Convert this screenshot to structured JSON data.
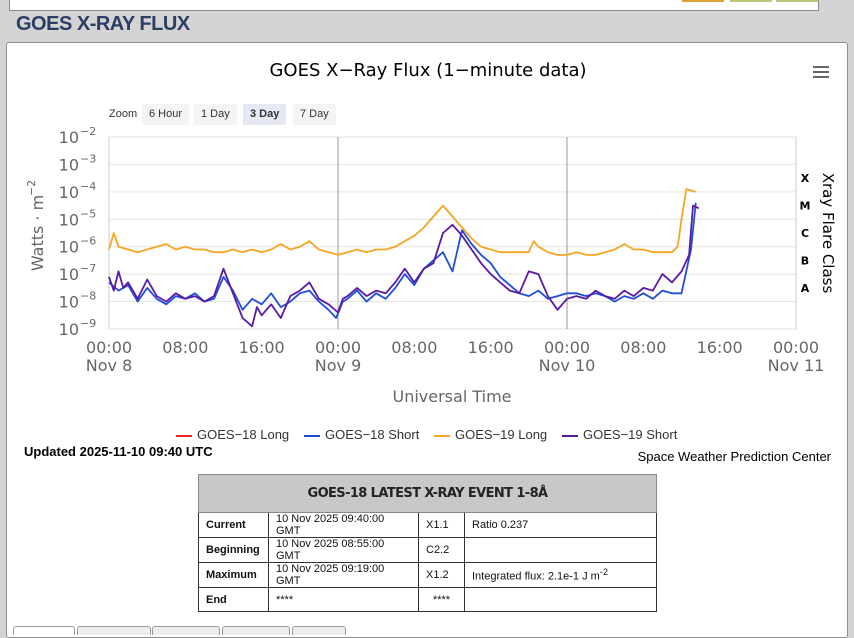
{
  "header": {
    "title": "GOES X-RAY FLUX"
  },
  "chart_data": {
    "type": "line",
    "title": "GOES X−Ray Flux (1−minute data)",
    "xlabel": "Universal Time",
    "ylabel": "Watts · m",
    "ylabel_sup": "−2",
    "y2label": "Xray Flare Class",
    "y_scale": "log",
    "x_domain_hours": [
      0,
      72
    ],
    "y_exponents": [
      -9,
      -2
    ],
    "y_ticks": [
      {
        "exp": -2,
        "label": "10",
        "sup": "−2"
      },
      {
        "exp": -3,
        "label": "10",
        "sup": "−3"
      },
      {
        "exp": -4,
        "label": "10",
        "sup": "−4"
      },
      {
        "exp": -5,
        "label": "10",
        "sup": "−5"
      },
      {
        "exp": -6,
        "label": "10",
        "sup": "−6"
      },
      {
        "exp": -7,
        "label": "10",
        "sup": "−7"
      },
      {
        "exp": -8,
        "label": "10",
        "sup": "−8"
      },
      {
        "exp": -9,
        "label": "10",
        "sup": "−9"
      }
    ],
    "flare_classes": [
      {
        "label": "X",
        "exp": -3.5
      },
      {
        "label": "M",
        "exp": -4.5
      },
      {
        "label": "C",
        "exp": -5.5
      },
      {
        "label": "B",
        "exp": -6.5
      },
      {
        "label": "A",
        "exp": -7.5
      }
    ],
    "x_ticks": [
      {
        "hour": 0,
        "time": "00:00",
        "date": "Nov 8"
      },
      {
        "hour": 8,
        "time": "08:00",
        "date": ""
      },
      {
        "hour": 16,
        "time": "16:00",
        "date": ""
      },
      {
        "hour": 24,
        "time": "00:00",
        "date": "Nov 9"
      },
      {
        "hour": 32,
        "time": "08:00",
        "date": ""
      },
      {
        "hour": 40,
        "time": "16:00",
        "date": ""
      },
      {
        "hour": 48,
        "time": "00:00",
        "date": "Nov 10"
      },
      {
        "hour": 56,
        "time": "08:00",
        "date": ""
      },
      {
        "hour": 64,
        "time": "16:00",
        "date": ""
      },
      {
        "hour": 72,
        "time": "00:00",
        "date": "Nov 11"
      }
    ],
    "series": [
      {
        "name": "GOES−18 Long",
        "color": "#e8212b",
        "points": []
      },
      {
        "name": "GOES−18 Short",
        "color": "#1f4fd6",
        "points": [
          [
            0,
            -7.3
          ],
          [
            1,
            -7.6
          ],
          [
            2,
            -7.4
          ],
          [
            3,
            -8.0
          ],
          [
            4,
            -7.5
          ],
          [
            5,
            -7.9
          ],
          [
            6,
            -8.1
          ],
          [
            7,
            -7.8
          ],
          [
            8,
            -7.9
          ],
          [
            9,
            -7.7
          ],
          [
            10,
            -8.0
          ],
          [
            11,
            -7.9
          ],
          [
            12,
            -7.1
          ],
          [
            13,
            -7.6
          ],
          [
            14,
            -8.3
          ],
          [
            15,
            -7.9
          ],
          [
            16,
            -8.1
          ],
          [
            17,
            -7.7
          ],
          [
            18,
            -8.2
          ],
          [
            19,
            -8.0
          ],
          [
            20,
            -7.7
          ],
          [
            21,
            -7.6
          ],
          [
            22,
            -8.0
          ],
          [
            23,
            -8.3
          ],
          [
            23.8,
            -8.6
          ],
          [
            24.5,
            -8.0
          ],
          [
            25,
            -7.9
          ],
          [
            26,
            -7.6
          ],
          [
            27,
            -8.0
          ],
          [
            28,
            -7.7
          ],
          [
            29,
            -7.9
          ],
          [
            30,
            -7.5
          ],
          [
            31,
            -7.0
          ],
          [
            32,
            -7.4
          ],
          [
            33,
            -6.8
          ],
          [
            34,
            -6.5
          ],
          [
            35,
            -6.2
          ],
          [
            36,
            -6.9
          ],
          [
            37,
            -5.4
          ],
          [
            38,
            -5.9
          ],
          [
            39,
            -6.3
          ],
          [
            40,
            -6.6
          ],
          [
            41,
            -7.1
          ],
          [
            42,
            -7.4
          ],
          [
            43,
            -7.7
          ],
          [
            44,
            -7.8
          ],
          [
            45,
            -7.6
          ],
          [
            46,
            -7.9
          ],
          [
            47,
            -7.8
          ],
          [
            48,
            -7.7
          ],
          [
            49,
            -7.7
          ],
          [
            50,
            -7.8
          ],
          [
            51,
            -7.7
          ],
          [
            52,
            -7.8
          ],
          [
            53,
            -8.0
          ],
          [
            54,
            -7.8
          ],
          [
            55,
            -7.9
          ],
          [
            56,
            -7.7
          ],
          [
            57,
            -7.9
          ],
          [
            58,
            -7.6
          ],
          [
            59,
            -7.7
          ],
          [
            60,
            -7.7
          ],
          [
            61,
            -6.1
          ],
          [
            61.5,
            -4.4
          ]
        ]
      },
      {
        "name": "GOES−19 Long",
        "color": "#f5a623",
        "points": [
          [
            0,
            -6.1
          ],
          [
            0.5,
            -5.5
          ],
          [
            1,
            -6.0
          ],
          [
            2,
            -6.1
          ],
          [
            3,
            -6.2
          ],
          [
            4,
            -6.1
          ],
          [
            5,
            -6.0
          ],
          [
            6,
            -5.9
          ],
          [
            7,
            -6.1
          ],
          [
            8,
            -6.0
          ],
          [
            9,
            -6.1
          ],
          [
            10,
            -6.1
          ],
          [
            11,
            -6.2
          ],
          [
            12,
            -6.2
          ],
          [
            13,
            -6.1
          ],
          [
            14,
            -6.2
          ],
          [
            15,
            -6.1
          ],
          [
            16,
            -6.2
          ],
          [
            17,
            -6.1
          ],
          [
            18,
            -5.9
          ],
          [
            19,
            -6.1
          ],
          [
            20,
            -6.0
          ],
          [
            21,
            -5.8
          ],
          [
            22,
            -6.1
          ],
          [
            23,
            -6.2
          ],
          [
            24,
            -6.3
          ],
          [
            25,
            -6.2
          ],
          [
            26,
            -6.1
          ],
          [
            27,
            -6.2
          ],
          [
            28,
            -6.1
          ],
          [
            29,
            -6.1
          ],
          [
            30,
            -6.0
          ],
          [
            31,
            -5.8
          ],
          [
            32,
            -5.6
          ],
          [
            33,
            -5.3
          ],
          [
            34,
            -4.9
          ],
          [
            35,
            -4.5
          ],
          [
            36,
            -4.9
          ],
          [
            37,
            -5.3
          ],
          [
            38,
            -5.7
          ],
          [
            39,
            -6.0
          ],
          [
            40,
            -6.1
          ],
          [
            41,
            -6.2
          ],
          [
            42,
            -6.2
          ],
          [
            43,
            -6.2
          ],
          [
            44,
            -6.2
          ],
          [
            44.5,
            -5.8
          ],
          [
            45,
            -6.0
          ],
          [
            46,
            -6.2
          ],
          [
            47,
            -6.3
          ],
          [
            48,
            -6.3
          ],
          [
            49,
            -6.2
          ],
          [
            50,
            -6.3
          ],
          [
            51,
            -6.3
          ],
          [
            52,
            -6.2
          ],
          [
            53,
            -6.1
          ],
          [
            54,
            -5.9
          ],
          [
            55,
            -6.1
          ],
          [
            56,
            -6.1
          ],
          [
            57,
            -6.2
          ],
          [
            58,
            -6.2
          ],
          [
            59,
            -6.2
          ],
          [
            59.6,
            -6.0
          ],
          [
            60,
            -5.0
          ],
          [
            60.5,
            -3.9
          ],
          [
            61.5,
            -4.0
          ]
        ]
      },
      {
        "name": "GOES−19 Short",
        "color": "#5a1aa3",
        "points": [
          [
            0,
            -7.1
          ],
          [
            0.5,
            -7.6
          ],
          [
            1,
            -6.9
          ],
          [
            1.5,
            -7.5
          ],
          [
            2,
            -7.3
          ],
          [
            3,
            -7.9
          ],
          [
            4,
            -7.2
          ],
          [
            5,
            -7.8
          ],
          [
            6,
            -8.0
          ],
          [
            7,
            -7.7
          ],
          [
            8,
            -7.9
          ],
          [
            9,
            -7.8
          ],
          [
            10,
            -8.0
          ],
          [
            11,
            -7.8
          ],
          [
            12,
            -6.8
          ],
          [
            13,
            -7.7
          ],
          [
            14,
            -8.6
          ],
          [
            15,
            -8.9
          ],
          [
            15.5,
            -8.2
          ],
          [
            16,
            -8.5
          ],
          [
            17,
            -8.1
          ],
          [
            18,
            -8.6
          ],
          [
            19,
            -7.8
          ],
          [
            20,
            -7.6
          ],
          [
            21,
            -7.3
          ],
          [
            22,
            -7.9
          ],
          [
            23,
            -8.1
          ],
          [
            24,
            -8.4
          ],
          [
            24.5,
            -7.9
          ],
          [
            25,
            -7.8
          ],
          [
            26,
            -7.5
          ],
          [
            27,
            -7.8
          ],
          [
            28,
            -7.6
          ],
          [
            29,
            -7.7
          ],
          [
            30,
            -7.3
          ],
          [
            31,
            -6.8
          ],
          [
            32,
            -7.3
          ],
          [
            33,
            -6.8
          ],
          [
            34,
            -6.6
          ],
          [
            35,
            -5.5
          ],
          [
            36,
            -5.2
          ],
          [
            37,
            -5.6
          ],
          [
            38,
            -6.1
          ],
          [
            39,
            -6.6
          ],
          [
            40,
            -7.0
          ],
          [
            41,
            -7.3
          ],
          [
            42,
            -7.6
          ],
          [
            43,
            -7.7
          ],
          [
            44,
            -6.9
          ],
          [
            45,
            -7.0
          ],
          [
            46,
            -7.8
          ],
          [
            47,
            -8.3
          ],
          [
            48,
            -7.9
          ],
          [
            49,
            -7.8
          ],
          [
            50,
            -7.9
          ],
          [
            51,
            -7.6
          ],
          [
            52,
            -7.8
          ],
          [
            53,
            -7.9
          ],
          [
            54,
            -7.6
          ],
          [
            55,
            -7.8
          ],
          [
            56,
            -7.5
          ],
          [
            57,
            -7.6
          ],
          [
            58,
            -7.0
          ],
          [
            59,
            -7.3
          ],
          [
            60,
            -6.9
          ],
          [
            60.8,
            -6.3
          ],
          [
            61.2,
            -4.5
          ],
          [
            61.8,
            -4.6
          ]
        ]
      }
    ],
    "legend_placement": "bottom"
  },
  "toolbar": {
    "zoom_label": "Zoom",
    "zoom_buttons": [
      "6 Hour",
      "1 Day",
      "3 Day",
      "7 Day"
    ],
    "zoom_selected": "3 Day"
  },
  "footer": {
    "updated": "Updated 2025-11-10 09:40 UTC",
    "credit": "Space Weather Prediction Center"
  },
  "event_table": {
    "title": "GOES-18 LATEST X-RAY EVENT 1-8Å",
    "rows": [
      {
        "label": "Current",
        "time": "10 Nov 2025 09:40:00 GMT",
        "class": "X1.1",
        "note": "Ratio 0.237",
        "note_sup": ""
      },
      {
        "label": "Beginning",
        "time": "10 Nov 2025 08:55:00 GMT",
        "class": "C2.2",
        "note": "",
        "note_sup": ""
      },
      {
        "label": "Maximum",
        "time": "10 Nov 2025 09:19:00 GMT",
        "class": "X1.2",
        "note": "Integrated flux: 2.1e-1 J m",
        "note_sup": "-2"
      },
      {
        "label": "End",
        "time": "****",
        "class": "****",
        "note": "",
        "note_sup": ""
      }
    ]
  }
}
